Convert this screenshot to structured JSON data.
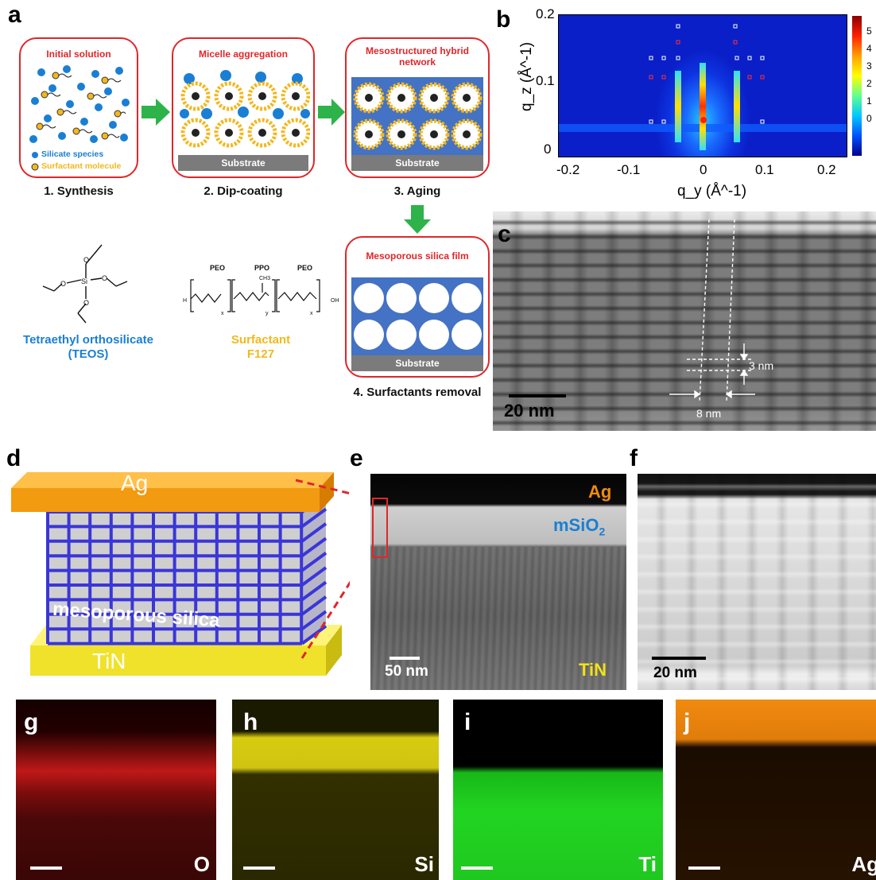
{
  "panels": {
    "a": "a",
    "b": "b",
    "c": "c",
    "d": "d",
    "e": "e",
    "f": "f",
    "g": "g",
    "h": "h",
    "i": "i",
    "j": "j"
  },
  "schematic": {
    "step1": {
      "title": "Initial solution",
      "legend_silicate": "Silicate species",
      "legend_surfactant": "Surfactant molecule",
      "caption": "1. Synthesis"
    },
    "step2": {
      "title": "Micelle aggregation",
      "substrate": "Substrate",
      "caption": "2. Dip-coating"
    },
    "step3": {
      "title": "Mesostructured hybrid network",
      "substrate": "Substrate",
      "caption": "3. Aging"
    },
    "step4": {
      "title": "Mesoporous silica film",
      "substrate": "Substrate",
      "caption": "4. Surfactants removal"
    },
    "teos": {
      "name": "Tetraethyl orthosilicate",
      "abbr": "(TEOS)",
      "atom": "Si"
    },
    "f127": {
      "name": "Surfactant",
      "abbr": "F127",
      "peo1": "PEO",
      "ppo": "PPO",
      "peo2": "PEO",
      "ch3": "CH3",
      "h": "H",
      "oh": "OH",
      "x1": "x",
      "y": "y",
      "x2": "x"
    }
  },
  "gisaxs": {
    "ylabel": "q_z (Å^-1)",
    "xlabel": "q_y (Å^-1)",
    "yticks": [
      "0.2",
      "0.1",
      "0"
    ],
    "xticks": [
      "-0.2",
      "-0.1",
      "0",
      "0.1",
      "0.2"
    ],
    "colorbar_ticks": [
      "5",
      "4",
      "3",
      "2",
      "1",
      "0"
    ]
  },
  "tem_c": {
    "scale": "20 nm",
    "dim_vertical": "3 nm",
    "dim_horizontal": "8 nm"
  },
  "device": {
    "top": "Ag",
    "middle": "mesoporous silica",
    "bottom": "TiN"
  },
  "tem_e": {
    "ag": "Ag",
    "msio2": "mSiO",
    "msio2_sub": "2",
    "tin": "TiN",
    "scale": "50 nm"
  },
  "tem_f": {
    "scale": "20 nm"
  },
  "eds": [
    {
      "panel": "g",
      "element": "O",
      "color": "#d42020"
    },
    {
      "panel": "h",
      "element": "Si",
      "color": "#e6dc18"
    },
    {
      "panel": "i",
      "element": "Ti",
      "color": "#22dd22"
    },
    {
      "panel": "j",
      "element": "Ag",
      "color": "#f08a10"
    }
  ],
  "colors": {
    "accent_red": "#e0262a",
    "silicate_blue": "#1a7fd4",
    "surfactant_yellow": "#f2b81d",
    "arrow_green": "#2db34a",
    "film_blue": "#4472c4"
  }
}
